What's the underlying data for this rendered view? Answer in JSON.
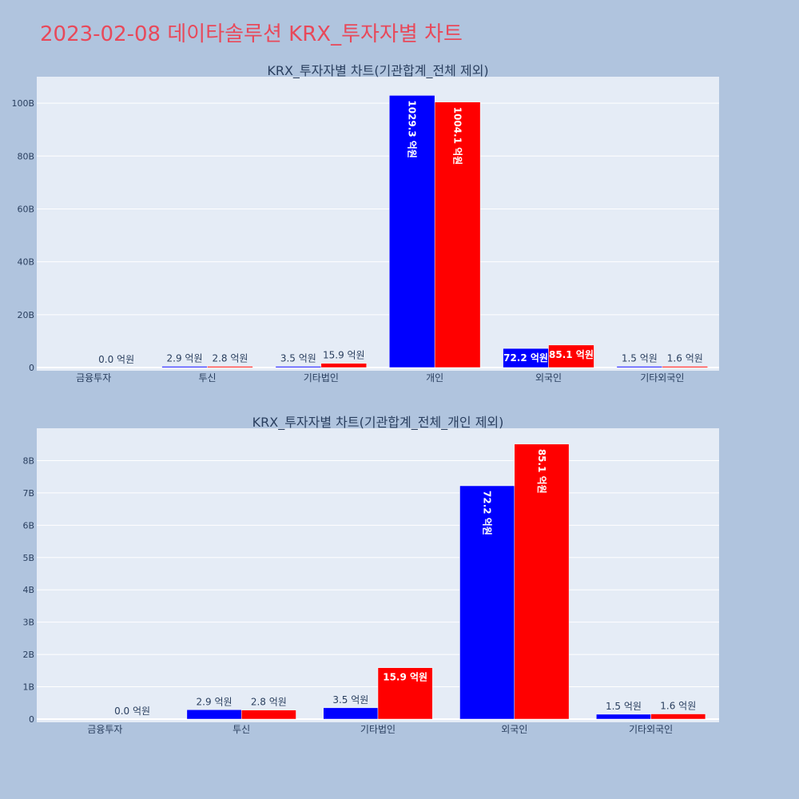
{
  "page": {
    "title": "2023-02-08 데이타솔루션 KRX_투자자별 차트"
  },
  "colors": {
    "background": "#b0c4de",
    "plot_bg": "#e5ecf6",
    "grid": "#ffffff",
    "title": "#e8495a",
    "series1": "#0000ff",
    "series2": "#ff0000",
    "text": "#2a3f5f"
  },
  "chart_data": [
    {
      "type": "bar",
      "title": "KRX_투자자별 차트(기관합계_전체 제외)",
      "categories": [
        "금융투자",
        "투신",
        "기타법인",
        "개인",
        "외국인",
        "기타외국인"
      ],
      "series": [
        {
          "color": "#0000ff",
          "values": [
            null,
            2.9,
            3.5,
            1029.3,
            72.2,
            1.5
          ],
          "labels": [
            "",
            "2.9 억원",
            "3.5 억원",
            "1029.3 억원",
            "72.2 억원",
            "1.5 억원"
          ]
        },
        {
          "color": "#ff0000",
          "values": [
            0.0,
            2.8,
            15.9,
            1004.1,
            85.1,
            1.6
          ],
          "labels": [
            "0.0 억원",
            "2.8 억원",
            "15.9 억원",
            "1004.1 억원",
            "85.1 억원",
            "1.6 억원"
          ]
        }
      ],
      "ylim": [
        0,
        1100
      ],
      "yticks": [
        0,
        200,
        400,
        600,
        800,
        1000
      ],
      "ytick_labels": [
        "0",
        "20B",
        "40B",
        "60B",
        "80B",
        "100B"
      ],
      "grid": true
    },
    {
      "type": "bar",
      "title": "KRX_투자자별 차트(기관합계_전체_개인 제외)",
      "categories": [
        "금융투자",
        "투신",
        "기타법인",
        "외국인",
        "기타외국인"
      ],
      "series": [
        {
          "color": "#0000ff",
          "values": [
            null,
            2.9,
            3.5,
            72.2,
            1.5
          ],
          "labels": [
            "",
            "2.9 억원",
            "3.5 억원",
            "72.2 억원",
            "1.5 억원"
          ]
        },
        {
          "color": "#ff0000",
          "values": [
            0.0,
            2.8,
            15.9,
            85.1,
            1.6
          ],
          "labels": [
            "0.0 억원",
            "2.8 억원",
            "15.9 억원",
            "85.1 억원",
            "1.6 억원"
          ]
        }
      ],
      "ylim": [
        0,
        90
      ],
      "yticks": [
        0,
        10,
        20,
        30,
        40,
        50,
        60,
        70,
        80
      ],
      "ytick_labels": [
        "0",
        "1B",
        "2B",
        "3B",
        "4B",
        "5B",
        "6B",
        "7B",
        "8B"
      ],
      "grid": true
    }
  ]
}
